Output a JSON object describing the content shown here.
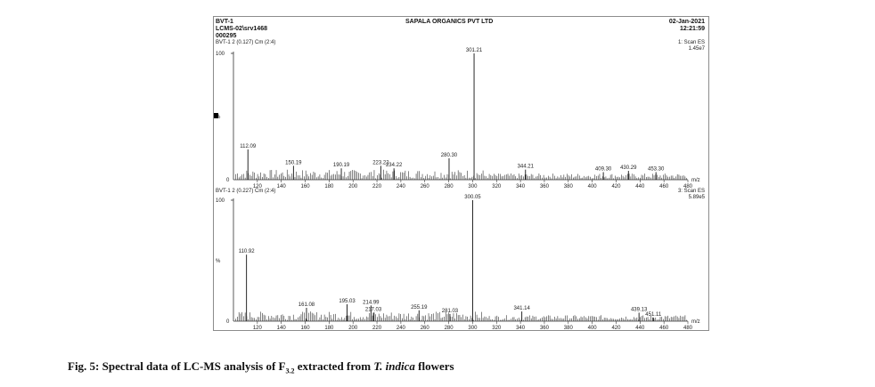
{
  "header": {
    "sample": "BVT-1",
    "file": "LCMS-02\\srv1468",
    "run": "000295",
    "company": "SAPALA ORGANICS PVT LTD",
    "date": "02-Jan-2021",
    "time": "12:21:59"
  },
  "caption": {
    "prefix": "Fig. 5: Spectral data of LC-MS analysis of F",
    "subscript": "3.2",
    "middle": " extracted from ",
    "species": "T. indica",
    "suffix": " flowers"
  },
  "chart_data": [
    {
      "type": "bar",
      "panel_label": "BVT-1 2 (0.127) Cm (2:4)",
      "scan_label": "1: Scan ES",
      "intensity": "1.45e7",
      "y_top_label": "100",
      "y_mid_label": "%",
      "y_zero_label": "0",
      "x_unit": "m/z",
      "xlim": [
        100,
        480
      ],
      "ylim": [
        0,
        100
      ],
      "x_ticks": [
        120,
        140,
        160,
        180,
        200,
        220,
        240,
        260,
        280,
        300,
        320,
        340,
        360,
        380,
        400,
        420,
        440,
        460,
        480
      ],
      "peaks": [
        {
          "x": 112.09,
          "y": 24,
          "label": "112.09"
        },
        {
          "x": 150.19,
          "y": 11,
          "label": "150.19"
        },
        {
          "x": 190.19,
          "y": 9,
          "label": "190.19"
        },
        {
          "x": 223.22,
          "y": 11,
          "label": "223.22"
        },
        {
          "x": 234.22,
          "y": 9,
          "label": "234.22"
        },
        {
          "x": 280.3,
          "y": 17,
          "label": "280.30"
        },
        {
          "x": 301.21,
          "y": 100,
          "label": "301.21"
        },
        {
          "x": 344.21,
          "y": 8,
          "label": "344.21"
        },
        {
          "x": 409.3,
          "y": 6,
          "label": "409.30"
        },
        {
          "x": 430.29,
          "y": 7,
          "label": "430.29"
        },
        {
          "x": 453.3,
          "y": 6,
          "label": "453.30"
        }
      ]
    },
    {
      "type": "bar",
      "panel_label": "BVT-1 2 (0.227) Cm (2:4)",
      "scan_label": "3: Scan ES",
      "intensity": "5.89e5",
      "y_top_label": "100",
      "y_mid_label": "%",
      "y_zero_label": "0",
      "x_unit": "m/z",
      "xlim": [
        100,
        480
      ],
      "ylim": [
        0,
        100
      ],
      "x_ticks": [
        120,
        140,
        160,
        180,
        200,
        220,
        240,
        260,
        280,
        300,
        320,
        340,
        360,
        380,
        400,
        420,
        440,
        460,
        480
      ],
      "peaks": [
        {
          "x": 110.92,
          "y": 55,
          "label": "110.92"
        },
        {
          "x": 161.08,
          "y": 11,
          "label": "161.08"
        },
        {
          "x": 195.03,
          "y": 14,
          "label": "195.03"
        },
        {
          "x": 214.99,
          "y": 13,
          "label": "214.99"
        },
        {
          "x": 217.03,
          "y": 7,
          "label": "217.03"
        },
        {
          "x": 255.19,
          "y": 9,
          "label": "255.19"
        },
        {
          "x": 281.03,
          "y": 6,
          "label": "281.03"
        },
        {
          "x": 300.05,
          "y": 100,
          "label": "300.05"
        },
        {
          "x": 341.14,
          "y": 8,
          "label": "341.14"
        },
        {
          "x": 439.13,
          "y": 7,
          "label": "439.13"
        },
        {
          "x": 451.11,
          "y": 3,
          "label": "451.11"
        }
      ]
    }
  ]
}
